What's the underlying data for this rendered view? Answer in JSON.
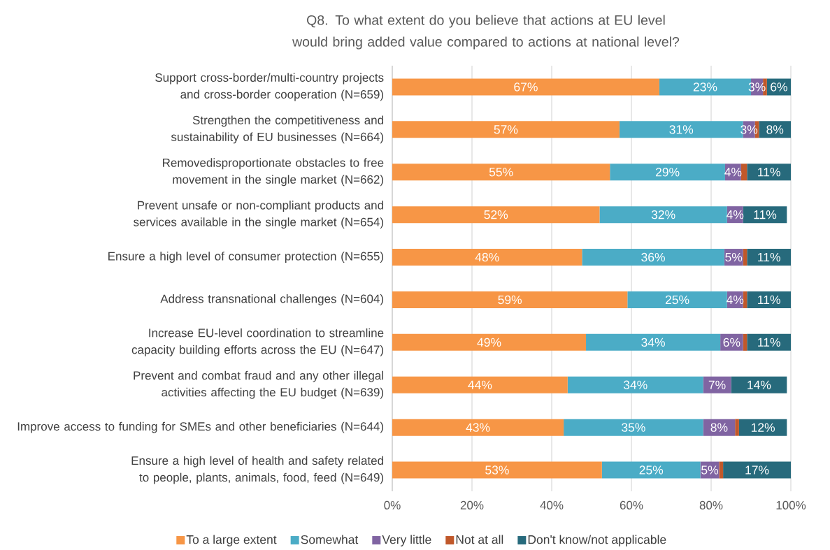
{
  "chart_data": {
    "type": "bar",
    "orientation": "horizontal",
    "stacked": true,
    "title": "Q8. To what extent do you believe that actions at EU level would bring added value compared to actions at national level?",
    "categories": [
      "Support cross-border/multi-country projects and cross-border cooperation (N=659)",
      "Strengthen the competitiveness and sustainability of EU businesses (N=664)",
      "Removedisproportionate obstacles to free movement in the single market (N=662)",
      "Prevent unsafe or non-compliant products and services available in the single market (N=654)",
      "Ensure a high level of consumer protection (N=655)",
      "Address transnational challenges (N=604)",
      "Increase EU-level coordination to streamline capacity building efforts across the EU (N=647)",
      "Prevent and combat fraud and any other illegal activities affecting the EU budget (N=639)",
      "Improve access to funding for SMEs and other beneficiaries (N=644)",
      "Ensure a high level of health and safety related to people, plants, animals, food, feed (N=649)"
    ],
    "series": [
      {
        "name": "To a large extent",
        "color": "#f79646",
        "values": [
          67,
          57,
          54.6,
          52,
          47.6,
          59,
          48.6,
          44,
          43,
          52.6
        ],
        "value_labels": [
          "67%",
          "57%",
          "55%",
          "52%",
          "48%",
          "59%",
          "49%",
          "44%",
          "43%",
          "53%"
        ]
      },
      {
        "name": "Somewhat",
        "color": "#4bacc6",
        "values": [
          23,
          31,
          28.9,
          32,
          35.7,
          25,
          33.7,
          34,
          35,
          24.7
        ],
        "value_labels": [
          "23%",
          "31%",
          "29%",
          "32%",
          "36%",
          "25%",
          "34%",
          "34%",
          "35%",
          "25%"
        ]
      },
      {
        "name": "Very little",
        "color": "#8064a2",
        "values": [
          3,
          3,
          4,
          4,
          4.7,
          4,
          5.7,
          7,
          8,
          4.7
        ],
        "value_labels": [
          "3%",
          "3%",
          "4%",
          "4%",
          "5%",
          "4%",
          "6%",
          "7%",
          "8%",
          "5%"
        ]
      },
      {
        "name": "Not at all",
        "color": "#c0582a",
        "values": [
          1,
          1,
          1.5,
          0,
          1,
          1,
          1,
          0,
          1,
          1
        ],
        "value_labels": [
          null,
          null,
          null,
          null,
          null,
          null,
          null,
          null,
          null,
          null
        ]
      },
      {
        "name": "Don't know/not applicable",
        "color": "#276a7c",
        "values": [
          6,
          8,
          11,
          11,
          11,
          11,
          11,
          14,
          12,
          17
        ],
        "value_labels": [
          "6%",
          "8%",
          "11%",
          "11%",
          "11%",
          "11%",
          "11%",
          "14%",
          "12%",
          "17%"
        ]
      }
    ],
    "xlim": [
      0,
      100
    ],
    "xticks": [
      {
        "value": 0,
        "label": "0%"
      },
      {
        "value": 20,
        "label": "20%"
      },
      {
        "value": 40,
        "label": "40%"
      },
      {
        "value": 60,
        "label": "60%"
      },
      {
        "value": 80,
        "label": "80%"
      },
      {
        "value": 100,
        "label": "100%"
      }
    ],
    "grid": "x",
    "legend": "bottom"
  }
}
